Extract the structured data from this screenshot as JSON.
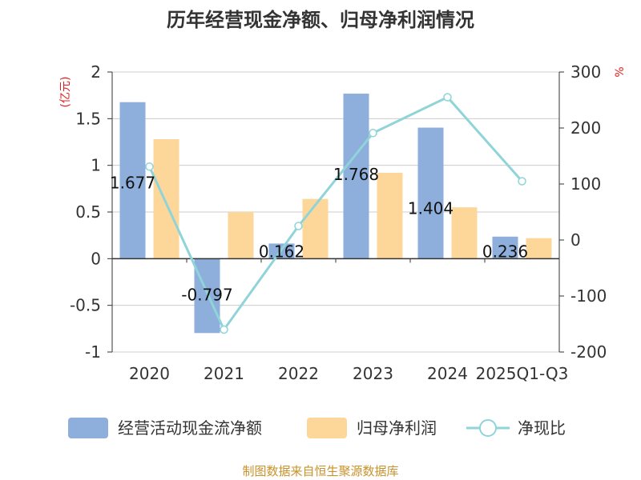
{
  "chart_data": {
    "type": "bar",
    "title": "历年经营现金净额、归母净利润情况",
    "categories": [
      "2020",
      "2021",
      "2022",
      "2023",
      "2024",
      "2025Q1-Q3"
    ],
    "series": [
      {
        "name": "经营活动现金流净额",
        "type": "bar",
        "axis": "left",
        "color": "#8eaedb",
        "values": [
          1.677,
          -0.797,
          0.162,
          1.768,
          1.404,
          0.236
        ]
      },
      {
        "name": "归母净利润",
        "type": "bar",
        "axis": "left",
        "color": "#fdd79a",
        "values": [
          1.28,
          0.5,
          0.64,
          0.92,
          0.55,
          0.22
        ]
      },
      {
        "name": "净现比",
        "type": "line",
        "axis": "right",
        "color": "#8fd4d8",
        "values": [
          131,
          -160,
          25,
          191,
          255,
          105
        ]
      }
    ],
    "data_labels": [
      "1.677",
      "-0.797",
      "0.162",
      "1.768",
      "1.404",
      "0.236"
    ],
    "y_left": {
      "unit": "(亿元)",
      "ylim": [
        -1,
        2
      ],
      "ticks": [
        "2",
        "1.5",
        "1",
        "0.5",
        "0",
        "-0.5",
        "-1"
      ]
    },
    "y_right": {
      "unit": "%",
      "ylim": [
        -200,
        300
      ],
      "ticks": [
        "300",
        "200",
        "100",
        "0",
        "-100",
        "-200"
      ]
    },
    "grid": true,
    "legend_position": "bottom"
  },
  "source": "制图数据来自恒生聚源数据库"
}
